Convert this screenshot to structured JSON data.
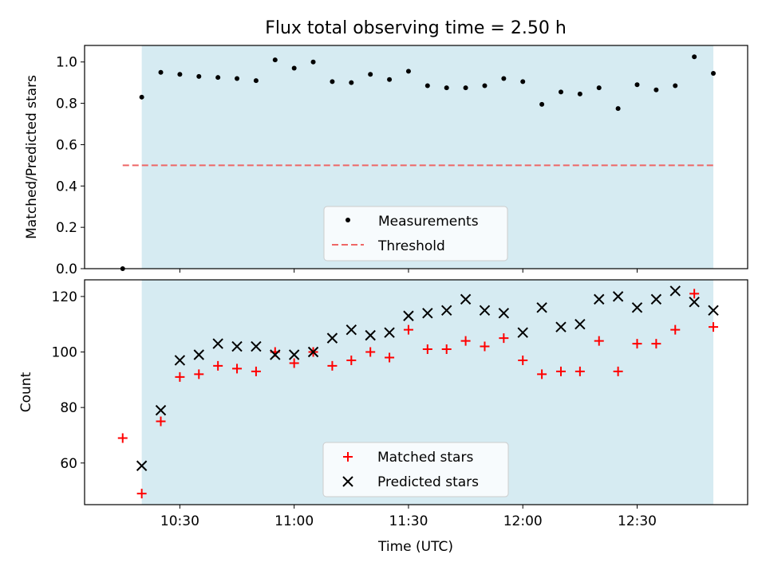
{
  "title": "Flux total observing time = 2.50 h",
  "colors": {
    "shade": "#add8e6",
    "measurement": "#000000",
    "threshold": "#ee6666",
    "matched": "#ff0000",
    "predicted": "#000000"
  },
  "chart_data": [
    {
      "type": "scatter",
      "ylabel": "Matched/Predicted stars",
      "ylim": [
        0,
        1.08
      ],
      "yticks": [
        "0.0",
        "0.2",
        "0.4",
        "0.6",
        "0.8",
        "1.0"
      ],
      "xlim": [
        "10:05",
        "12:59"
      ],
      "shaded_region": [
        "10:20",
        "12:50"
      ],
      "threshold": {
        "value": 0.5,
        "x": [
          "10:15",
          "12:50"
        ]
      },
      "legend": {
        "position": "lower center",
        "entries": [
          "Measurements",
          "Threshold"
        ]
      },
      "series": [
        {
          "name": "Measurements",
          "points": [
            [
              "10:15",
              0.0
            ],
            [
              "10:20",
              0.83
            ],
            [
              "10:25",
              0.95
            ],
            [
              "10:30",
              0.94
            ],
            [
              "10:35",
              0.93
            ],
            [
              "10:40",
              0.925
            ],
            [
              "10:45",
              0.92
            ],
            [
              "10:50",
              0.91
            ],
            [
              "10:55",
              1.01
            ],
            [
              "11:00",
              0.97
            ],
            [
              "11:05",
              1.0
            ],
            [
              "11:10",
              0.905
            ],
            [
              "11:15",
              0.9
            ],
            [
              "11:20",
              0.94
            ],
            [
              "11:25",
              0.915
            ],
            [
              "11:30",
              0.955
            ],
            [
              "11:35",
              0.885
            ],
            [
              "11:40",
              0.875
            ],
            [
              "11:45",
              0.875
            ],
            [
              "11:50",
              0.885
            ],
            [
              "11:55",
              0.92
            ],
            [
              "12:00",
              0.905
            ],
            [
              "12:05",
              0.795
            ],
            [
              "12:10",
              0.855
            ],
            [
              "12:15",
              0.845
            ],
            [
              "12:20",
              0.875
            ],
            [
              "12:25",
              0.775
            ],
            [
              "12:30",
              0.89
            ],
            [
              "12:35",
              0.865
            ],
            [
              "12:40",
              0.885
            ],
            [
              "12:45",
              1.025
            ],
            [
              "12:50",
              0.945
            ]
          ]
        }
      ]
    },
    {
      "type": "scatter",
      "xlabel": "Time (UTC)",
      "ylabel": "Count",
      "ylim": [
        45,
        126
      ],
      "yticks": [
        "60",
        "80",
        "100",
        "120"
      ],
      "xticks": [
        "10:30",
        "11:00",
        "11:30",
        "12:00",
        "12:30"
      ],
      "xlim": [
        "10:05",
        "12:59"
      ],
      "shaded_region": [
        "10:20",
        "12:50"
      ],
      "legend": {
        "position": "lower center",
        "entries": [
          "Matched stars",
          "Predicted stars"
        ]
      },
      "series": [
        {
          "name": "Matched stars",
          "marker": "plus",
          "points": [
            [
              "10:15",
              69
            ],
            [
              "10:20",
              49
            ],
            [
              "10:25",
              75
            ],
            [
              "10:30",
              91
            ],
            [
              "10:35",
              92
            ],
            [
              "10:40",
              95
            ],
            [
              "10:45",
              94
            ],
            [
              "10:50",
              93
            ],
            [
              "10:55",
              100
            ],
            [
              "11:00",
              96
            ],
            [
              "11:05",
              100
            ],
            [
              "11:10",
              95
            ],
            [
              "11:15",
              97
            ],
            [
              "11:20",
              100
            ],
            [
              "11:25",
              98
            ],
            [
              "11:30",
              108
            ],
            [
              "11:35",
              101
            ],
            [
              "11:40",
              101
            ],
            [
              "11:45",
              104
            ],
            [
              "11:50",
              102
            ],
            [
              "11:55",
              105
            ],
            [
              "12:00",
              97
            ],
            [
              "12:05",
              92
            ],
            [
              "12:10",
              93
            ],
            [
              "12:15",
              93
            ],
            [
              "12:20",
              104
            ],
            [
              "12:25",
              93
            ],
            [
              "12:30",
              103
            ],
            [
              "12:35",
              103
            ],
            [
              "12:40",
              108
            ],
            [
              "12:45",
              121
            ],
            [
              "12:50",
              109
            ]
          ]
        },
        {
          "name": "Predicted stars",
          "marker": "x",
          "points": [
            [
              "10:20",
              59
            ],
            [
              "10:25",
              79
            ],
            [
              "10:30",
              97
            ],
            [
              "10:35",
              99
            ],
            [
              "10:40",
              103
            ],
            [
              "10:45",
              102
            ],
            [
              "10:50",
              102
            ],
            [
              "10:55",
              99
            ],
            [
              "11:00",
              99
            ],
            [
              "11:05",
              100
            ],
            [
              "11:10",
              105
            ],
            [
              "11:15",
              108
            ],
            [
              "11:20",
              106
            ],
            [
              "11:25",
              107
            ],
            [
              "11:30",
              113
            ],
            [
              "11:35",
              114
            ],
            [
              "11:40",
              115
            ],
            [
              "11:45",
              119
            ],
            [
              "11:50",
              115
            ],
            [
              "11:55",
              114
            ],
            [
              "12:00",
              107
            ],
            [
              "12:05",
              116
            ],
            [
              "12:10",
              109
            ],
            [
              "12:15",
              110
            ],
            [
              "12:20",
              119
            ],
            [
              "12:25",
              120
            ],
            [
              "12:30",
              116
            ],
            [
              "12:35",
              119
            ],
            [
              "12:40",
              122
            ],
            [
              "12:45",
              118
            ],
            [
              "12:50",
              115
            ]
          ]
        }
      ]
    }
  ]
}
